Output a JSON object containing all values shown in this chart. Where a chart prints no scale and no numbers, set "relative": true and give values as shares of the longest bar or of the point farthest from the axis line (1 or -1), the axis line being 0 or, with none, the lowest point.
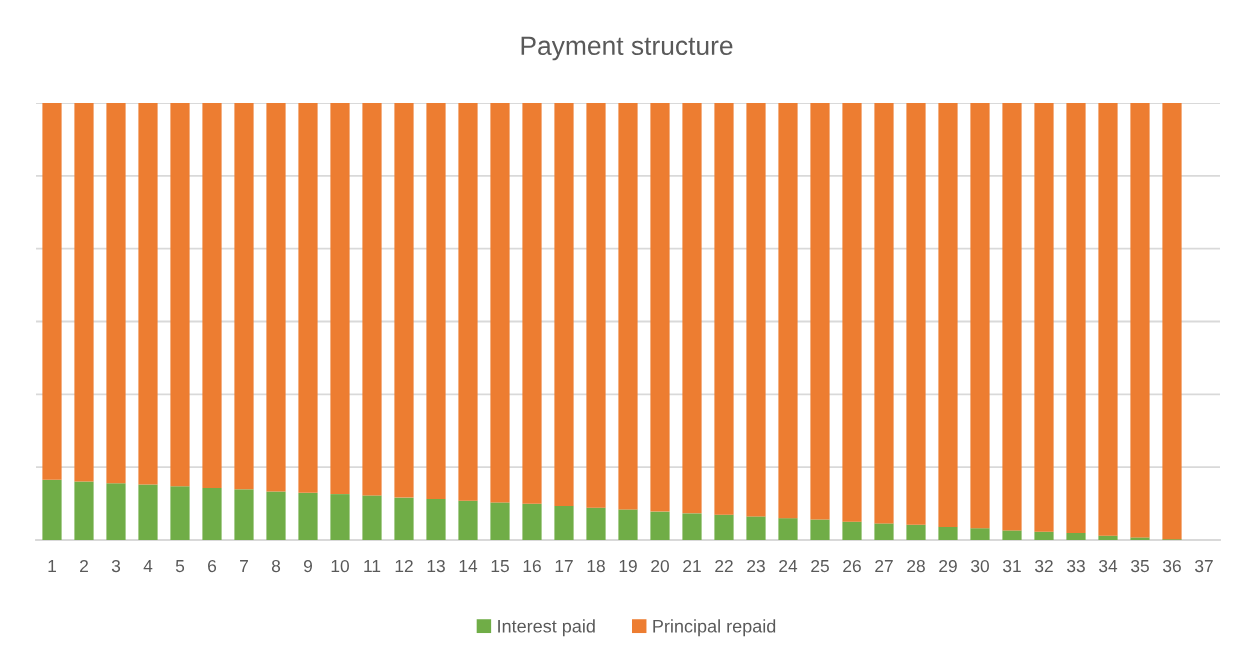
{
  "chart_data": {
    "type": "bar",
    "title": "Payment structure",
    "stacked": true,
    "relative": true,
    "grid": "y",
    "legend": "bottom",
    "categories": [
      "1",
      "2",
      "3",
      "4",
      "5",
      "6",
      "7",
      "8",
      "9",
      "10",
      "11",
      "12",
      "13",
      "14",
      "15",
      "16",
      "17",
      "18",
      "19",
      "20",
      "21",
      "22",
      "23",
      "24",
      "25",
      "26",
      "27",
      "28",
      "29",
      "30",
      "31",
      "32",
      "33",
      "34",
      "35",
      "36",
      "37"
    ],
    "series": [
      {
        "name": "Interest paid",
        "color": "#70ad47",
        "values": [
          0.138,
          0.134,
          0.13,
          0.127,
          0.123,
          0.119,
          0.116,
          0.111,
          0.108,
          0.105,
          0.102,
          0.097,
          0.094,
          0.09,
          0.086,
          0.083,
          0.078,
          0.074,
          0.07,
          0.065,
          0.061,
          0.058,
          0.054,
          0.05,
          0.047,
          0.042,
          0.038,
          0.035,
          0.03,
          0.027,
          0.022,
          0.019,
          0.016,
          0.01,
          0.006,
          0.002,
          null
        ]
      },
      {
        "name": "Principal repaid",
        "color": "#ed7d31",
        "values": [
          0.862,
          0.866,
          0.87,
          0.873,
          0.877,
          0.881,
          0.884,
          0.889,
          0.892,
          0.895,
          0.898,
          0.903,
          0.906,
          0.91,
          0.914,
          0.917,
          0.922,
          0.926,
          0.93,
          0.935,
          0.939,
          0.942,
          0.946,
          0.95,
          0.953,
          0.958,
          0.962,
          0.965,
          0.97,
          0.973,
          0.978,
          0.981,
          0.984,
          0.99,
          0.994,
          0.998,
          null
        ]
      }
    ]
  }
}
